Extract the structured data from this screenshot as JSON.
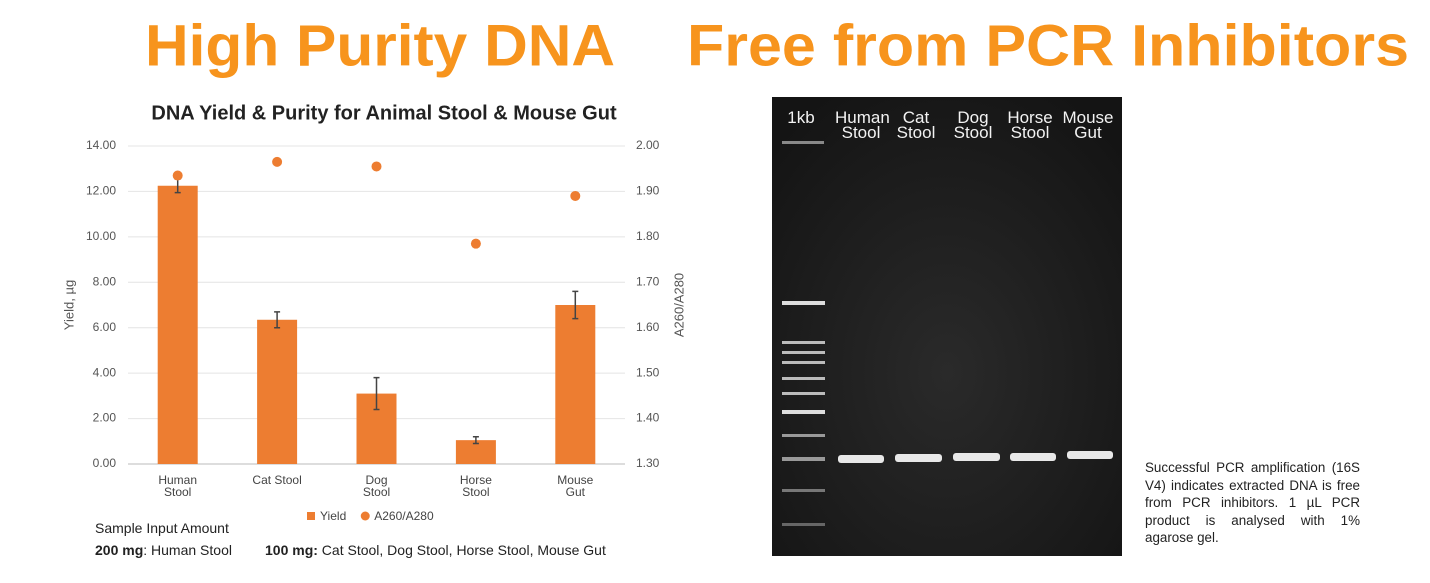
{
  "headings": {
    "left": "High Purity DNA",
    "right": "Free from PCR Inhibitors"
  },
  "chart_data": {
    "type": "bar",
    "title": "DNA Yield & Purity for Animal Stool & Mouse Gut",
    "categories": [
      "Human Stool",
      "Cat Stool",
      "Dog Stool",
      "Horse Stool",
      "Mouse Gut"
    ],
    "series": [
      {
        "name": "Yield",
        "type": "bar",
        "color": "#ed7d31",
        "values": [
          12.25,
          6.35,
          3.1,
          1.05,
          7.0
        ],
        "errors": [
          0.3,
          0.35,
          0.7,
          0.15,
          0.6
        ]
      },
      {
        "name": "A260/A280",
        "type": "scatter",
        "axis": "y2",
        "color": "#ed7d31",
        "values": [
          1.935,
          1.965,
          1.955,
          1.785,
          1.89
        ]
      }
    ],
    "ylabel": "Yield, µg",
    "y2label": "A260/A280",
    "ylim": [
      0,
      14
    ],
    "yticks": [
      {
        "value": 0,
        "label": "0.00"
      },
      {
        "value": 2,
        "label": "2.00"
      },
      {
        "value": 4,
        "label": "4.00"
      },
      {
        "value": 6,
        "label": "6.00"
      },
      {
        "value": 8,
        "label": "8.00"
      },
      {
        "value": 10,
        "label": "10.00"
      },
      {
        "value": 12,
        "label": "12.00"
      },
      {
        "value": 14,
        "label": "14.00"
      }
    ],
    "y2lim": [
      1.3,
      2.0
    ],
    "y2ticks": [
      {
        "value": 1.3,
        "label": "1.30"
      },
      {
        "value": 1.4,
        "label": "1.40"
      },
      {
        "value": 1.5,
        "label": "1.50"
      },
      {
        "value": 1.6,
        "label": "1.60"
      },
      {
        "value": 1.7,
        "label": "1.70"
      },
      {
        "value": 1.8,
        "label": "1.80"
      },
      {
        "value": 1.9,
        "label": "1.90"
      },
      {
        "value": 2.0,
        "label": "2.00"
      }
    ],
    "grid": true
  },
  "sample_input": {
    "title": "Sample Input Amount",
    "line1_bold": "200 mg",
    "line1_rest": ": Human Stool",
    "line2_bold": "100 mg:",
    "line2_rest": " Cat Stool, Dog Stool, Horse Stool, Mouse Gut"
  },
  "gel": {
    "lanes": [
      "1kb",
      "Human Stool",
      "Cat Stool",
      "Dog Stool",
      "Horse Stool",
      "Mouse Gut"
    ]
  },
  "caption": "Successful PCR amplification (16S V4) indicates extracted DNA is free from PCR inhibitors. 1 µL PCR product is analysed with 1% agarose gel."
}
